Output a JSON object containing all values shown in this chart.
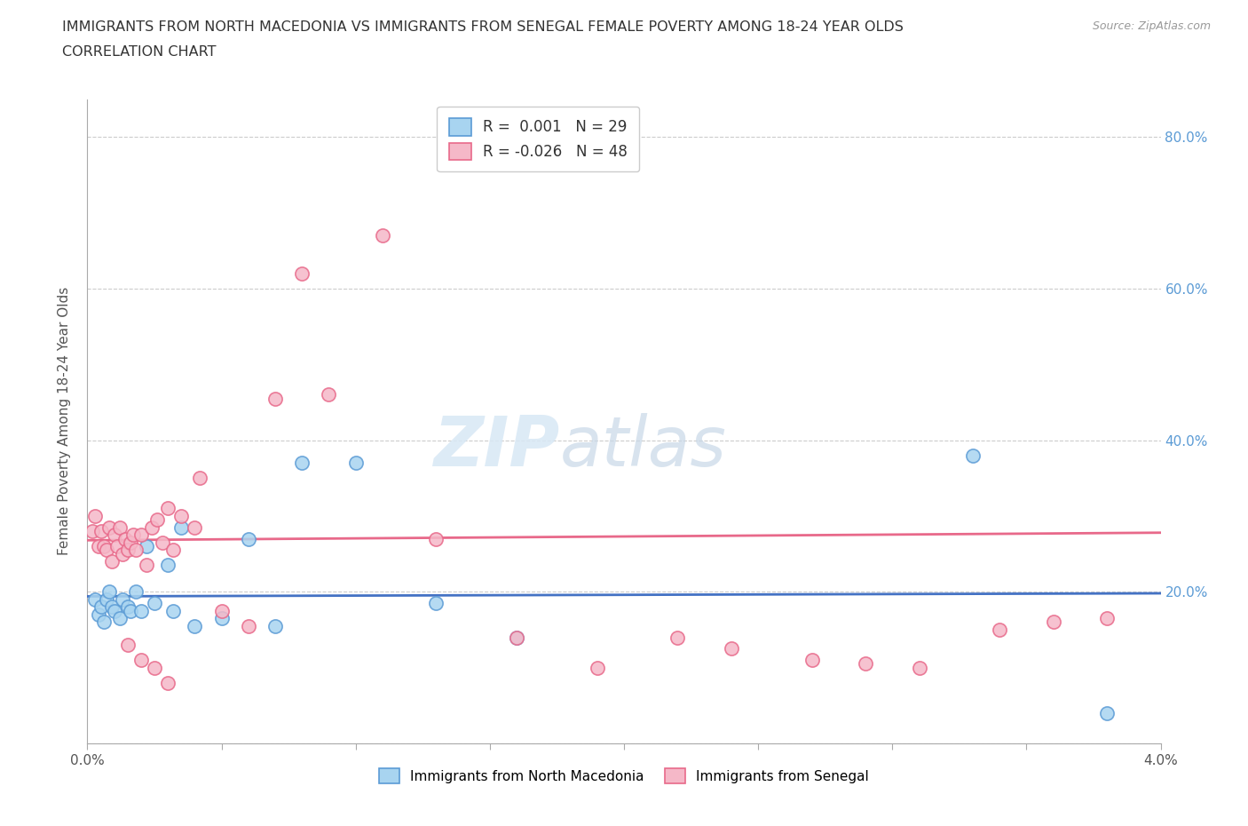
{
  "title_line1": "IMMIGRANTS FROM NORTH MACEDONIA VS IMMIGRANTS FROM SENEGAL FEMALE POVERTY AMONG 18-24 YEAR OLDS",
  "title_line2": "CORRELATION CHART",
  "source_text": "Source: ZipAtlas.com",
  "ylabel": "Female Poverty Among 18-24 Year Olds",
  "xlim": [
    0.0,
    0.04
  ],
  "ylim": [
    0.0,
    0.85
  ],
  "xticks": [
    0.0,
    0.005,
    0.01,
    0.015,
    0.02,
    0.025,
    0.03,
    0.035,
    0.04
  ],
  "xtick_labels": [
    "0.0%",
    "",
    "",
    "",
    "",
    "",
    "",
    "",
    "4.0%"
  ],
  "yticks": [
    0.0,
    0.2,
    0.4,
    0.6,
    0.8
  ],
  "ytick_labels_right": [
    "",
    "20.0%",
    "40.0%",
    "60.0%",
    "80.0%"
  ],
  "blue_color": "#A8D4F0",
  "pink_color": "#F5B8C8",
  "blue_edge_color": "#5B9BD5",
  "pink_edge_color": "#E8698A",
  "blue_line_color": "#4472C4",
  "pink_line_color": "#E8698A",
  "legend_r_blue": "0.001",
  "legend_n_blue": "29",
  "legend_r_pink": "-0.026",
  "legend_n_pink": "48",
  "watermark_zip": "ZIP",
  "watermark_atlas": "atlas",
  "blue_x": [
    0.0003,
    0.0004,
    0.0005,
    0.0006,
    0.0007,
    0.0008,
    0.0009,
    0.001,
    0.0012,
    0.0013,
    0.0015,
    0.0016,
    0.0018,
    0.002,
    0.0022,
    0.0025,
    0.003,
    0.0032,
    0.0035,
    0.004,
    0.005,
    0.006,
    0.007,
    0.008,
    0.01,
    0.013,
    0.016,
    0.033,
    0.038
  ],
  "blue_y": [
    0.19,
    0.17,
    0.18,
    0.16,
    0.19,
    0.2,
    0.18,
    0.175,
    0.165,
    0.19,
    0.18,
    0.175,
    0.2,
    0.175,
    0.26,
    0.185,
    0.235,
    0.175,
    0.285,
    0.155,
    0.165,
    0.27,
    0.155,
    0.37,
    0.37,
    0.185,
    0.14,
    0.38,
    0.04
  ],
  "pink_x": [
    0.0002,
    0.0003,
    0.0004,
    0.0005,
    0.0006,
    0.0007,
    0.0008,
    0.0009,
    0.001,
    0.0011,
    0.0012,
    0.0013,
    0.0014,
    0.0015,
    0.0016,
    0.0017,
    0.0018,
    0.002,
    0.0022,
    0.0024,
    0.0026,
    0.0028,
    0.003,
    0.0032,
    0.0035,
    0.004,
    0.0042,
    0.005,
    0.006,
    0.007,
    0.008,
    0.009,
    0.011,
    0.013,
    0.016,
    0.019,
    0.022,
    0.024,
    0.027,
    0.029,
    0.031,
    0.034,
    0.036,
    0.038,
    0.0015,
    0.002,
    0.0025,
    0.003
  ],
  "pink_y": [
    0.28,
    0.3,
    0.26,
    0.28,
    0.26,
    0.255,
    0.285,
    0.24,
    0.275,
    0.26,
    0.285,
    0.25,
    0.27,
    0.255,
    0.265,
    0.275,
    0.255,
    0.275,
    0.235,
    0.285,
    0.295,
    0.265,
    0.31,
    0.255,
    0.3,
    0.285,
    0.35,
    0.175,
    0.155,
    0.455,
    0.62,
    0.46,
    0.67,
    0.27,
    0.14,
    0.1,
    0.14,
    0.125,
    0.11,
    0.105,
    0.1,
    0.15,
    0.16,
    0.165,
    0.13,
    0.11,
    0.1,
    0.08
  ]
}
